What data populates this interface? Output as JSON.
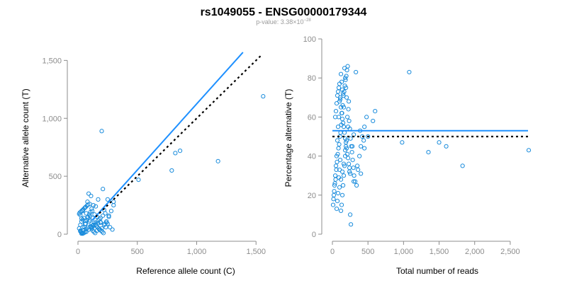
{
  "figure": {
    "title": "rs1049055 - ENSG00000179344",
    "subtitle_prefix": "p-value: 3.38×10",
    "subtitle_exponent": "−28"
  },
  "chart_data": [
    {
      "type": "scatter",
      "title": "",
      "xlabel": "Reference allele count (C)",
      "ylabel": "Alternative allele count (T)",
      "xlim": [
        0,
        1600
      ],
      "ylim": [
        0,
        1600
      ],
      "xticks": [
        0,
        500,
        1000,
        1500
      ],
      "xtick_labels": [
        "0",
        "500",
        "1,000",
        "1,500"
      ],
      "yticks": [
        0,
        500,
        1000,
        1500
      ],
      "ytick_labels": [
        "0",
        "500",
        "1,000",
        "1,500"
      ],
      "grid": false,
      "colors": {
        "points": "#1a8cdc",
        "fit": "#1e90ff",
        "reference": "#000000"
      },
      "lines": [
        {
          "style": "solid",
          "color": "#1e90ff",
          "x": [
            120,
            1390
          ],
          "y": [
            120,
            1570
          ]
        },
        {
          "style": "dotted",
          "color": "#000000",
          "x": [
            150,
            1550
          ],
          "y": [
            150,
            1550
          ]
        }
      ],
      "points": {
        "x": [
          1560,
          200,
          860,
          820,
          1180,
          790,
          510,
          300,
          260,
          220,
          210,
          190,
          170,
          150,
          130,
          110,
          90,
          70,
          50,
          40,
          30,
          20,
          10,
          25,
          35,
          45,
          55,
          65,
          75,
          85,
          95,
          105,
          115,
          125,
          135,
          145,
          155,
          165,
          175,
          185,
          195,
          205,
          215,
          225,
          235,
          60,
          80,
          100,
          120,
          140,
          160,
          180,
          240,
          250,
          270,
          290,
          100,
          120,
          90,
          60,
          40,
          30,
          20,
          50,
          70,
          80,
          110,
          130,
          150,
          170,
          190,
          60,
          40,
          30,
          80,
          100,
          20,
          10,
          15,
          25,
          35,
          45,
          55,
          65,
          75,
          85,
          95,
          105,
          115,
          125,
          135,
          145,
          160,
          180,
          200,
          220,
          240,
          260,
          280,
          300,
          250,
          230,
          210,
          190,
          170,
          150,
          130,
          110,
          90,
          70,
          50,
          30,
          20,
          40,
          60
        ],
        "y": [
          1190,
          890,
          720,
          700,
          630,
          550,
          470,
          280,
          160,
          210,
          390,
          100,
          300,
          240,
          250,
          330,
          350,
          180,
          140,
          200,
          110,
          80,
          50,
          20,
          10,
          30,
          60,
          90,
          120,
          150,
          170,
          190,
          220,
          140,
          100,
          80,
          70,
          60,
          50,
          40,
          30,
          20,
          10,
          90,
          60,
          230,
          280,
          260,
          200,
          170,
          150,
          130,
          110,
          90,
          60,
          40,
          120,
          60,
          40,
          20,
          5,
          15,
          25,
          35,
          45,
          55,
          65,
          75,
          85,
          95,
          105,
          115,
          125,
          135,
          145,
          155,
          165,
          175,
          185,
          195,
          205,
          215,
          225,
          235,
          245,
          255,
          110,
          70,
          50,
          30,
          20,
          10,
          30,
          40,
          50,
          80,
          100,
          150,
          200,
          250,
          300,
          180,
          160,
          140,
          120,
          100,
          80,
          60,
          40,
          20,
          10,
          5,
          30,
          60,
          90
        ]
      }
    },
    {
      "type": "scatter",
      "title": "",
      "xlabel": "Total number of reads",
      "ylabel": "Percentage alternative (T)",
      "xlim": [
        0,
        2750
      ],
      "ylim": [
        0,
        100
      ],
      "xticks": [
        0,
        500,
        1000,
        1500,
        2000,
        2500
      ],
      "xtick_labels": [
        "0",
        "500",
        "1,000",
        "1,500",
        "2,000",
        "2,500"
      ],
      "yticks": [
        0,
        20,
        40,
        60,
        80,
        100
      ],
      "ytick_labels": [
        "0",
        "20",
        "40",
        "60",
        "80",
        "100"
      ],
      "grid": false,
      "colors": {
        "points": "#1a8cdc",
        "fit": "#1e90ff",
        "reference": "#000000"
      },
      "lines": [
        {
          "style": "solid",
          "color": "#1e90ff",
          "x": [
            0,
            2750
          ],
          "y": [
            53,
            53
          ]
        },
        {
          "style": "dotted",
          "color": "#000000",
          "x": [
            0,
            2750
          ],
          "y": [
            50,
            50
          ]
        }
      ],
      "points": {
        "x": [
          2760,
          1830,
          1600,
          1500,
          1350,
          1080,
          980,
          600,
          570,
          440,
          390,
          330,
          300,
          280,
          260,
          250,
          240,
          230,
          220,
          210,
          200,
          190,
          180,
          170,
          160,
          150,
          140,
          130,
          120,
          110,
          100,
          90,
          80,
          70,
          60,
          50,
          40,
          30,
          20,
          10,
          15,
          25,
          35,
          45,
          55,
          65,
          75,
          85,
          95,
          105,
          115,
          125,
          135,
          145,
          155,
          165,
          175,
          185,
          195,
          205,
          215,
          225,
          235,
          245,
          255,
          265,
          275,
          285,
          295,
          305,
          320,
          340,
          360,
          380,
          400,
          420,
          450,
          480,
          500,
          120,
          130,
          140,
          150,
          160,
          170,
          180,
          190,
          60,
          70,
          80,
          90,
          100,
          110,
          40,
          50,
          60,
          70,
          80,
          90,
          100,
          110,
          120,
          130,
          140,
          150,
          160,
          170,
          180,
          190,
          200,
          210,
          220,
          230,
          240,
          250,
          100,
          120,
          140,
          160,
          180,
          200,
          300,
          350,
          400,
          450
        ],
        "y": [
          43,
          35,
          45,
          47,
          42,
          83,
          47,
          63,
          58,
          48,
          53,
          83,
          27,
          45,
          5,
          10,
          32,
          68,
          55,
          60,
          70,
          75,
          80,
          85,
          65,
          72,
          74,
          78,
          82,
          70,
          68,
          60,
          55,
          48,
          40,
          35,
          30,
          25,
          20,
          15,
          18,
          22,
          26,
          28,
          33,
          37,
          41,
          44,
          46,
          50,
          52,
          56,
          62,
          66,
          71,
          73,
          76,
          79,
          81,
          84,
          86,
          64,
          58,
          54,
          49,
          45,
          42,
          38,
          34,
          30,
          27,
          25,
          33,
          40,
          45,
          50,
          55,
          60,
          50,
          12,
          15,
          20,
          25,
          30,
          35,
          40,
          45,
          13,
          17,
          21,
          29,
          33,
          38,
          60,
          63,
          67,
          71,
          73,
          75,
          77,
          69,
          65,
          62,
          59,
          57,
          55,
          52,
          49,
          47,
          44,
          41,
          39,
          36,
          34,
          31,
          24,
          28,
          32,
          36,
          43,
          48,
          51,
          35,
          31,
          44
        ]
      }
    }
  ]
}
